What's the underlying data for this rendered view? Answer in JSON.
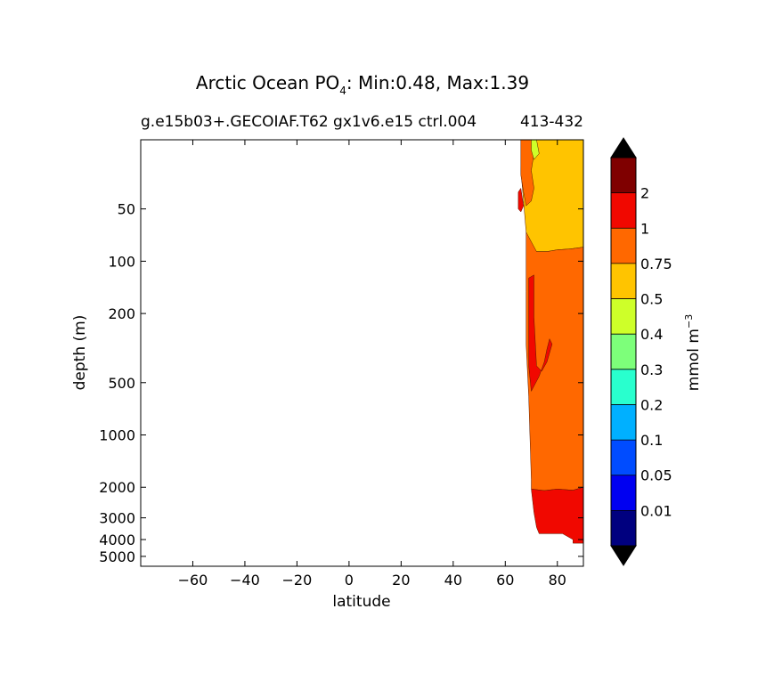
{
  "chart_data": {
    "type": "contour",
    "title": "Arctic Ocean PO",
    "title_subscript": "4",
    "title_suffix": ": Min:0.48, Max:1.39",
    "subtitle_left": "g.e15b03+.GECOIAF.T62 gx1v6.e15 ctrl.004",
    "subtitle_right": "413-432",
    "xlabel": "latitude",
    "ylabel": "depth (m)",
    "xlim": [
      -80,
      90
    ],
    "ylim": [
      5700,
      20
    ],
    "y_scale": "log",
    "x_ticks": [
      -60,
      -40,
      -20,
      0,
      20,
      40,
      60,
      80
    ],
    "x_tick_labels": [
      "−60",
      "−40",
      "−20",
      "0",
      "20",
      "40",
      "60",
      "80"
    ],
    "y_ticks": [
      50,
      100,
      200,
      500,
      1000,
      2000,
      3000,
      4000,
      5000
    ],
    "y_tick_labels": [
      "50",
      "100",
      "200",
      "500",
      "1000",
      "2000",
      "3000",
      "4000",
      "5000"
    ],
    "colorbar": {
      "label": "mmol m",
      "label_superscript": "−3",
      "levels": [
        "0.01",
        "0.05",
        "0.1",
        "0.2",
        "0.3",
        "0.4",
        "0.5",
        "0.75",
        "1",
        "2"
      ],
      "colors": [
        "#00007f",
        "#0000f1",
        "#004cff",
        "#00b0ff",
        "#29ffce",
        "#7dff7a",
        "#ceff29",
        "#ffc400",
        "#ff6800",
        "#f10800",
        "#7f0000"
      ],
      "under_color": "#000000",
      "over_color": "#000000"
    },
    "regions": [
      {
        "name": "0.5–0.75",
        "color": "#ffc400",
        "polygon": [
          [
            67,
            20
          ],
          [
            90,
            20
          ],
          [
            90,
            83
          ],
          [
            85,
            85
          ],
          [
            80,
            86
          ],
          [
            76,
            88
          ],
          [
            72,
            88
          ],
          [
            69,
            85
          ],
          [
            68,
            68
          ],
          [
            67,
            45
          ],
          [
            66,
            30
          ]
        ]
      },
      {
        "name": "0.75–1 (upper patch)",
        "color": "#ff6800",
        "polygon": [
          [
            66,
            20
          ],
          [
            71,
            20
          ],
          [
            71,
            24
          ],
          [
            70,
            30
          ],
          [
            71,
            38
          ],
          [
            70,
            45
          ],
          [
            68,
            48
          ],
          [
            67,
            40
          ],
          [
            66,
            32
          ]
        ]
      },
      {
        "name": "0.4–0.5",
        "color": "#ceff29",
        "polygon": [
          [
            70,
            20
          ],
          [
            72,
            20
          ],
          [
            73,
            24
          ],
          [
            71,
            26
          ],
          [
            70,
            23
          ]
        ]
      },
      {
        "name": "1–2 (surface fringe)",
        "color": "#f10800",
        "polygon": [
          [
            65,
            40
          ],
          [
            66,
            38
          ],
          [
            67,
            48
          ],
          [
            66,
            52
          ],
          [
            65,
            50
          ]
        ]
      },
      {
        "name": "0.75–1",
        "color": "#ff6800",
        "polygon": [
          [
            68,
            68
          ],
          [
            72,
            88
          ],
          [
            76,
            88
          ],
          [
            80,
            86
          ],
          [
            85,
            85
          ],
          [
            90,
            83
          ],
          [
            90,
            2000
          ],
          [
            86,
            2080
          ],
          [
            80,
            2050
          ],
          [
            75,
            2090
          ],
          [
            70,
            2050
          ],
          [
            70,
            1800
          ],
          [
            69,
            600
          ],
          [
            68,
            300
          ],
          [
            68,
            150
          ]
        ]
      },
      {
        "name": "1–2 (mid-depth band)",
        "color": "#f10800",
        "polygon": [
          [
            69,
            125
          ],
          [
            71,
            120
          ],
          [
            71,
            210
          ],
          [
            72,
            400
          ],
          [
            74,
            430
          ],
          [
            76,
            380
          ],
          [
            78,
            300
          ],
          [
            77,
            280
          ],
          [
            76,
            320
          ],
          [
            75,
            380
          ],
          [
            73,
            460
          ],
          [
            70,
            560
          ],
          [
            69,
            400
          ]
        ]
      },
      {
        "name": "1–2 (deep)",
        "color": "#f10800",
        "polygon": [
          [
            70,
            2050
          ],
          [
            75,
            2090
          ],
          [
            80,
            2050
          ],
          [
            86,
            2080
          ],
          [
            90,
            2000
          ],
          [
            90,
            4200
          ],
          [
            86,
            4200
          ],
          [
            86,
            4000
          ],
          [
            82,
            3700
          ],
          [
            73,
            3700
          ],
          [
            72,
            3400
          ],
          [
            71,
            2800
          ]
        ]
      }
    ]
  }
}
